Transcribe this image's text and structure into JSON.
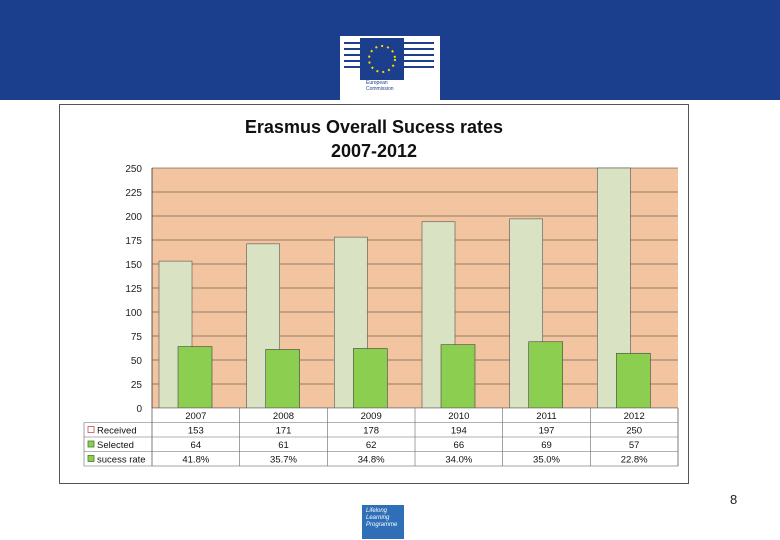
{
  "brand": {
    "org_line1": "European",
    "org_line2": "Commission",
    "banner_color": "#1b3f8c"
  },
  "footer": {
    "page_number": "8",
    "program_line1": "Lifelong",
    "program_line2": "Learning",
    "program_line3": "Programme"
  },
  "chart_data": {
    "type": "bar",
    "title_line1": "Erasmus Overall Sucess rates",
    "title_line2": "2007-2012",
    "categories": [
      "2007",
      "2008",
      "2009",
      "2010",
      "2011",
      "2012"
    ],
    "series": [
      {
        "name": "Received",
        "values": [
          153,
          171,
          178,
          194,
          197,
          250
        ],
        "color": "#d9e3c4"
      },
      {
        "name": "Selected",
        "values": [
          64,
          61,
          62,
          66,
          69,
          57
        ],
        "color": "#8ccf50"
      },
      {
        "name": "sucess rate",
        "values": [
          "41.8%",
          "35.7%",
          "34.8%",
          "34.0%",
          "35.0%",
          "22.8%"
        ],
        "color": "#8ccf50"
      }
    ],
    "ylim": [
      0,
      250
    ],
    "yticks": [
      0,
      25,
      50,
      75,
      100,
      125,
      150,
      175,
      200,
      225,
      250
    ],
    "grid": true,
    "plot_background": "#f2c4a0",
    "legend": "data-table"
  }
}
